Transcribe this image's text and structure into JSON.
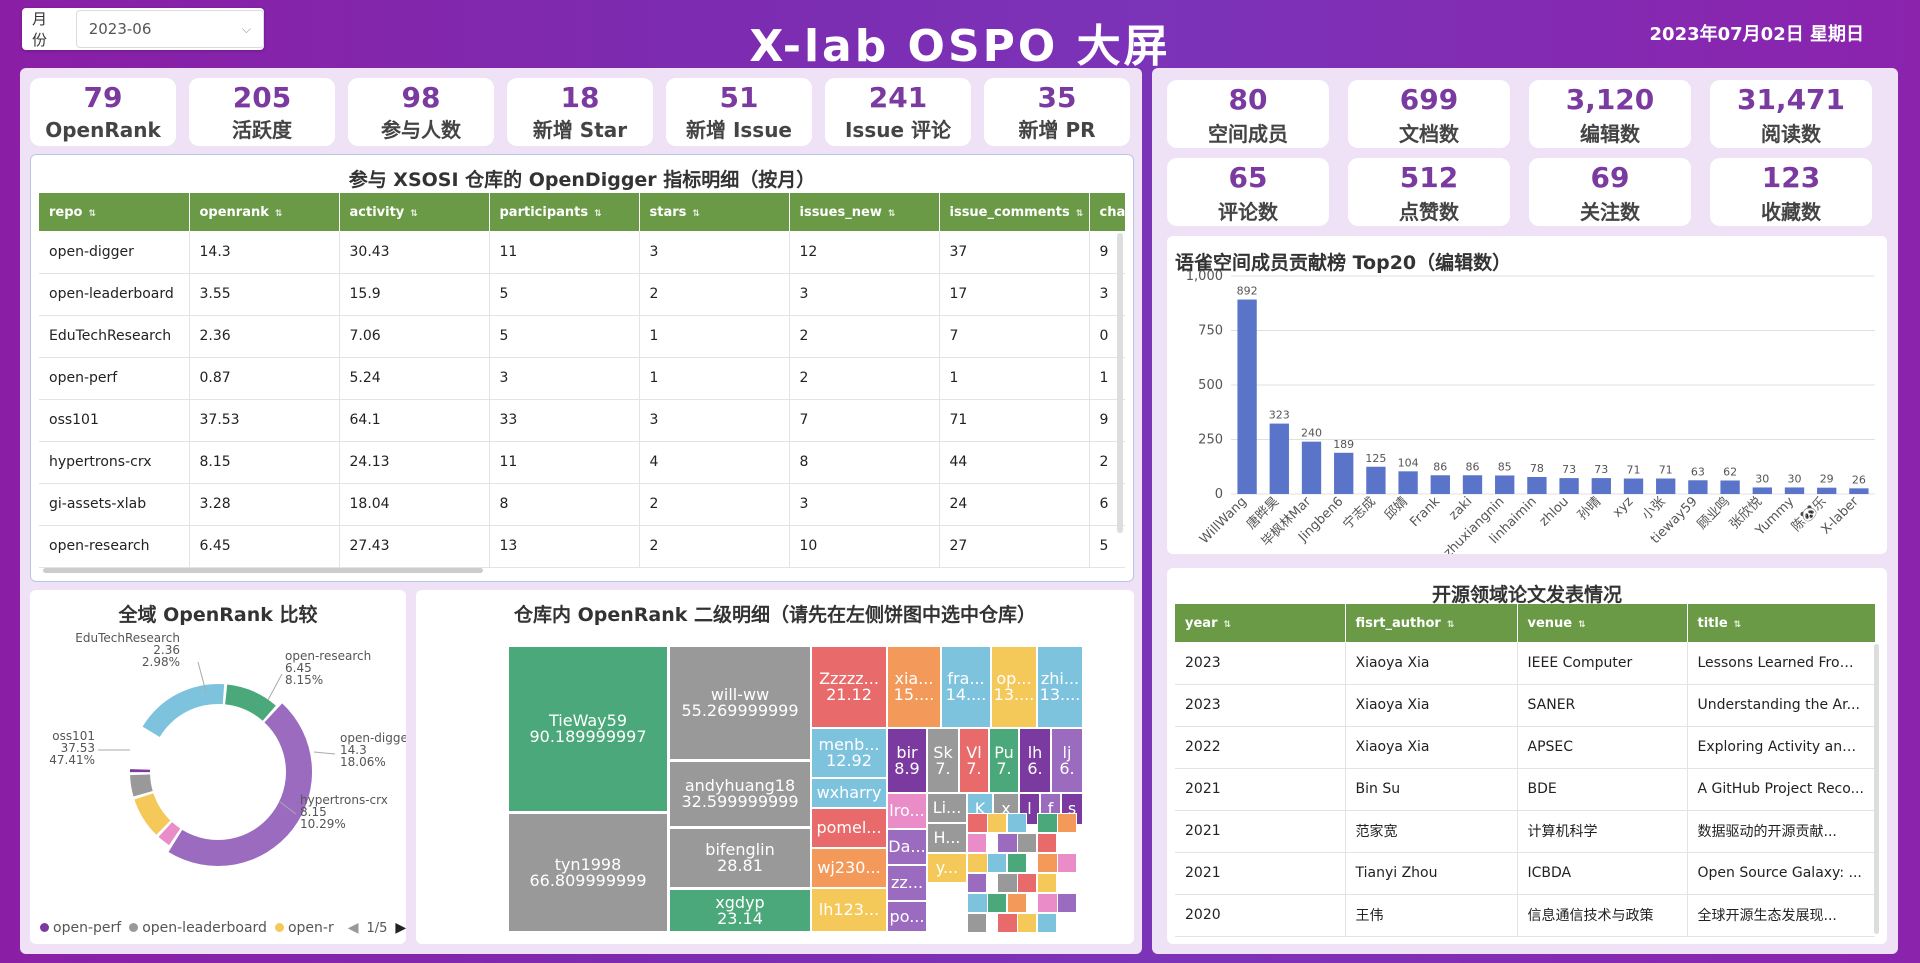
{
  "header": {
    "month_label": "月份",
    "month_value": "2023-06",
    "title": "X-lab OSPO 大屏",
    "date": "2023年07月02日 星期日"
  },
  "left_stats": [
    {
      "value": "79",
      "label": "OpenRank"
    },
    {
      "value": "205",
      "label": "活跃度"
    },
    {
      "value": "98",
      "label": "参与人数"
    },
    {
      "value": "18",
      "label": "新增 Star"
    },
    {
      "value": "51",
      "label": "新增 Issue"
    },
    {
      "value": "241",
      "label": "Issue 评论"
    },
    {
      "value": "35",
      "label": "新增 PR"
    }
  ],
  "right_stats": [
    {
      "value": "80",
      "label": "空间成员"
    },
    {
      "value": "699",
      "label": "文档数"
    },
    {
      "value": "3,120",
      "label": "编辑数"
    },
    {
      "value": "31,471",
      "label": "阅读数"
    },
    {
      "value": "65",
      "label": "评论数"
    },
    {
      "value": "512",
      "label": "点赞数"
    },
    {
      "value": "69",
      "label": "关注数"
    },
    {
      "value": "123",
      "label": "收藏数"
    }
  ],
  "metrics_table": {
    "title": "参与 XSOSI 仓库的 OpenDigger 指标明细（按月）",
    "columns": [
      "repo",
      "openrank",
      "activity",
      "participants",
      "stars",
      "issues_new",
      "issue_comments",
      "char"
    ],
    "rows": [
      [
        "open-digger",
        "14.3",
        "30.43",
        "11",
        "3",
        "12",
        "37",
        "9"
      ],
      [
        "open-leaderboard",
        "3.55",
        "15.9",
        "5",
        "2",
        "3",
        "17",
        "3"
      ],
      [
        "EduTechResearch",
        "2.36",
        "7.06",
        "5",
        "1",
        "2",
        "7",
        "0"
      ],
      [
        "open-perf",
        "0.87",
        "5.24",
        "3",
        "1",
        "2",
        "1",
        "1"
      ],
      [
        "oss101",
        "37.53",
        "64.1",
        "33",
        "3",
        "7",
        "71",
        "9"
      ],
      [
        "hypertrons-crx",
        "8.15",
        "24.13",
        "11",
        "4",
        "8",
        "44",
        "2"
      ],
      [
        "gi-assets-xlab",
        "3.28",
        "18.04",
        "8",
        "2",
        "3",
        "24",
        "6"
      ],
      [
        "open-research",
        "6.45",
        "27.43",
        "13",
        "2",
        "10",
        "27",
        "5"
      ]
    ]
  },
  "pie": {
    "title": "全域 OpenRank 比较",
    "labels": [
      {
        "name": "EduTechResearch",
        "value": "2.36",
        "pct": "2.98%"
      },
      {
        "name": "open-research",
        "value": "6.45",
        "pct": "8.15%"
      },
      {
        "name": "open-digger",
        "value": "14.3",
        "pct": "18.06%"
      },
      {
        "name": "hypertrons-crx",
        "value": "8.15",
        "pct": "10.29%"
      },
      {
        "name": "oss101",
        "value": "37.53",
        "pct": "47.41%"
      }
    ],
    "legend": [
      "open-perf",
      "open-leaderboard",
      "open-r"
    ],
    "page": "1/5",
    "colors": {
      "oss101": "#9b6bbf",
      "open-digger": "#7ec3de",
      "hypertrons-crx": "#4aa87a",
      "open-research": "#f5c85a",
      "EduTechResearch": "#e98cc8",
      "open-leaderboard": "#999999",
      "open-perf": "#7b3aa0"
    }
  },
  "treemap": {
    "title": "仓库内 OpenRank 二级明细（请先在左侧饼图中选中仓库）",
    "cells": [
      {
        "name": "TieWay59",
        "value": "90.189999997"
      },
      {
        "name": "will-ww",
        "value": "55.269999999"
      },
      {
        "name": "tyn1998",
        "value": "66.809999999"
      },
      {
        "name": "andyhuang18",
        "value": "32.599999999"
      },
      {
        "name": "bifenglin",
        "value": "28.81"
      },
      {
        "name": "xgdyp",
        "value": "23.14"
      },
      {
        "name": "Zzzzz...",
        "value": "21.12"
      },
      {
        "name": "xia...",
        "value": "15...."
      },
      {
        "name": "fra...",
        "value": "14...."
      },
      {
        "name": "op...",
        "value": "13...."
      },
      {
        "name": "zhi...",
        "value": "13...."
      },
      {
        "name": "menb...",
        "value": "12.92"
      },
      {
        "name": "bir",
        "value": "8.9"
      },
      {
        "name": "Sk",
        "value": "7."
      },
      {
        "name": "Vl",
        "value": "7."
      },
      {
        "name": "Pu",
        "value": "7."
      },
      {
        "name": "lh",
        "value": "6."
      },
      {
        "name": "lj",
        "value": "6."
      },
      {
        "name": "wxharry",
        "value": ""
      },
      {
        "name": "lro...",
        "value": ""
      },
      {
        "name": "Li...",
        "value": ""
      },
      {
        "name": "K",
        "value": ""
      },
      {
        "name": "x",
        "value": ""
      },
      {
        "name": "l",
        "value": ""
      },
      {
        "name": "f",
        "value": ""
      },
      {
        "name": "s",
        "value": ""
      },
      {
        "name": "pomel...",
        "value": ""
      },
      {
        "name": "Da...",
        "value": ""
      },
      {
        "name": "H...",
        "value": ""
      },
      {
        "name": "wj230...",
        "value": ""
      },
      {
        "name": "y...",
        "value": ""
      },
      {
        "name": "zz...",
        "value": ""
      },
      {
        "name": "lh123...",
        "value": ""
      },
      {
        "name": "po...",
        "value": ""
      }
    ]
  },
  "chart_data": {
    "type": "bar",
    "title": "语雀空间成员贡献榜 Top20（编辑数）",
    "categories": [
      "WillWang",
      "唐晔昊",
      "毕枫林Mar",
      "Jingben6",
      "宁志成",
      "邱婧",
      "Frank",
      "zaki",
      "zhuxiangnin",
      "linhaimin",
      "zhlou",
      "孙晴",
      "xyz",
      "小张",
      "tieway59",
      "顾业鸣",
      "张欣悦",
      "Yummy",
      "陈🐼乐",
      "X-laber"
    ],
    "values": [
      892,
      323,
      240,
      189,
      125,
      104,
      86,
      86,
      85,
      78,
      73,
      73,
      71,
      71,
      63,
      62,
      30,
      30,
      29,
      26
    ],
    "yticks": [
      "0",
      "250",
      "500",
      "750",
      "1,000"
    ],
    "ylim": [
      0,
      1000
    ],
    "color": "#5a74c9"
  },
  "papers_table": {
    "title": "开源领域论文发表情况",
    "columns": [
      "year",
      "fisrt_author",
      "venue",
      "title"
    ],
    "rows": [
      [
        "2023",
        "Xiaoya Xia",
        "IEEE Computer",
        "Lessons Learned From..."
      ],
      [
        "2023",
        "Xiaoya Xia",
        "SANER",
        "Understanding the Ar..."
      ],
      [
        "2022",
        "Xiaoya Xia",
        "APSEC",
        "Exploring Activity and ..."
      ],
      [
        "2021",
        "Bin Su",
        "BDE",
        "A GitHub Project Reco..."
      ],
      [
        "2021",
        "范家宽",
        "计算机科学",
        "数据驱动的开源贡献..."
      ],
      [
        "2021",
        "Tianyi Zhou",
        "ICBDA",
        "Open Source Galaxy: ..."
      ],
      [
        "2020",
        "王伟",
        "信息通信技术与政策",
        "全球开源生态发展现..."
      ]
    ]
  }
}
